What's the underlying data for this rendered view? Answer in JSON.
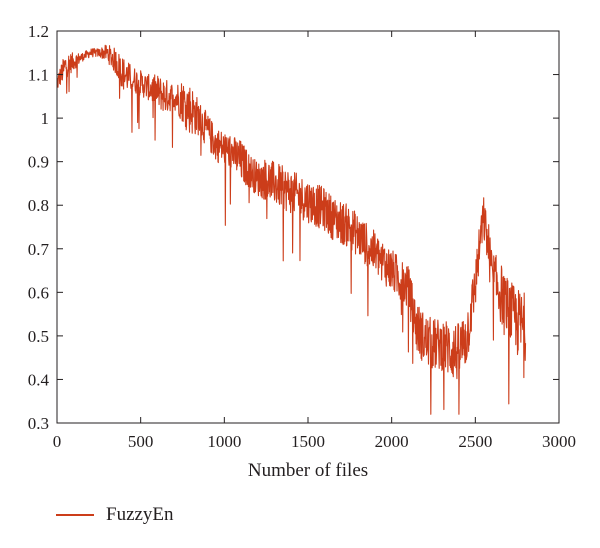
{
  "chart_data": {
    "type": "line",
    "xlabel": "Number of files",
    "ylabel": "",
    "xlim": [
      0,
      3000
    ],
    "ylim": [
      0.3,
      1.2
    ],
    "x_ticks": [
      "0",
      "500",
      "1000",
      "1500",
      "2000",
      "2500",
      "3000"
    ],
    "y_ticks": [
      "0.3",
      "0.4",
      "0.5",
      "0.6",
      "0.7",
      "0.8",
      "0.9",
      "1",
      "1.1",
      "1.2"
    ],
    "grid": false,
    "legend_position": "bottom-left",
    "colors": {
      "series": "#cc3d1a",
      "axis": "#231f20"
    },
    "series": [
      {
        "name": "FuzzyEn",
        "x": [
          0,
          50,
          100,
          150,
          200,
          250,
          300,
          350,
          400,
          450,
          500,
          550,
          600,
          650,
          700,
          750,
          800,
          850,
          900,
          950,
          1000,
          1050,
          1100,
          1150,
          1200,
          1250,
          1300,
          1350,
          1400,
          1450,
          1500,
          1550,
          1600,
          1650,
          1700,
          1750,
          1800,
          1850,
          1900,
          1950,
          2000,
          2050,
          2100,
          2150,
          2200,
          2250,
          2300,
          2350,
          2400,
          2450,
          2480,
          2500,
          2530,
          2550,
          2580,
          2600,
          2650,
          2700,
          2750,
          2800
        ],
        "values": [
          1.08,
          1.12,
          1.13,
          1.14,
          1.15,
          1.15,
          1.15,
          1.13,
          1.1,
          1.09,
          1.08,
          1.07,
          1.06,
          1.05,
          1.05,
          1.04,
          1.02,
          1.0,
          0.97,
          0.94,
          0.93,
          0.92,
          0.9,
          0.88,
          0.86,
          0.86,
          0.85,
          0.84,
          0.83,
          0.82,
          0.81,
          0.8,
          0.79,
          0.77,
          0.76,
          0.75,
          0.73,
          0.71,
          0.69,
          0.67,
          0.65,
          0.63,
          0.61,
          0.52,
          0.49,
          0.48,
          0.48,
          0.47,
          0.46,
          0.5,
          0.57,
          0.62,
          0.72,
          0.77,
          0.7,
          0.64,
          0.6,
          0.56,
          0.53,
          0.52
        ],
        "noise_amplitude": [
          0.02,
          0.03,
          0.02,
          0.01,
          0.01,
          0.01,
          0.02,
          0.03,
          0.04,
          0.03,
          0.03,
          0.03,
          0.04,
          0.04,
          0.03,
          0.05,
          0.06,
          0.04,
          0.04,
          0.04,
          0.04,
          0.04,
          0.05,
          0.04,
          0.04,
          0.05,
          0.05,
          0.05,
          0.05,
          0.05,
          0.05,
          0.05,
          0.05,
          0.05,
          0.05,
          0.05,
          0.05,
          0.05,
          0.05,
          0.05,
          0.05,
          0.05,
          0.05,
          0.06,
          0.06,
          0.06,
          0.06,
          0.07,
          0.07,
          0.07,
          0.06,
          0.06,
          0.05,
          0.05,
          0.06,
          0.06,
          0.07,
          0.07,
          0.08,
          0.08
        ]
      }
    ]
  }
}
